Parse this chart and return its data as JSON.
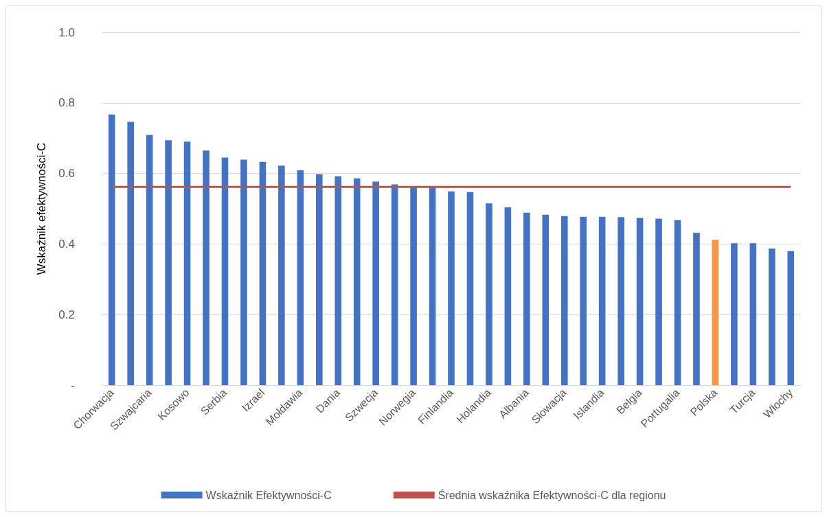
{
  "chart_data": {
    "type": "bar",
    "ylabel": "Wskaźnik efektywności-C",
    "categories": [
      "Chorwacja",
      null,
      "Szwajcaria",
      null,
      "Kosowo",
      null,
      "Serbia",
      null,
      "Izrael",
      null,
      "Mołdawia",
      null,
      "Dania",
      null,
      "Szwecja",
      null,
      "Norwegia",
      null,
      "Finlandia",
      null,
      "Holandia",
      null,
      "Albania",
      null,
      "Słowacja",
      null,
      "Islandia",
      null,
      "Belgia",
      null,
      "Portugalia",
      null,
      "Polska",
      null,
      "Turcja",
      null,
      "Włochy"
    ],
    "series": [
      {
        "name": "Wskaźnik Efektywności-C",
        "color": "#4472c4",
        "colors": [
          "#4472c4",
          "#4472c4",
          "#4472c4",
          "#4472c4",
          "#4472c4",
          "#4472c4",
          "#4472c4",
          "#4472c4",
          "#4472c4",
          "#4472c4",
          "#4472c4",
          "#4472c4",
          "#4472c4",
          "#4472c4",
          "#4472c4",
          "#4472c4",
          "#4472c4",
          "#4472c4",
          "#4472c4",
          "#4472c4",
          "#4472c4",
          "#4472c4",
          "#4472c4",
          "#4472c4",
          "#4472c4",
          "#4472c4",
          "#4472c4",
          "#4472c4",
          "#4472c4",
          "#4472c4",
          "#4472c4",
          "#4472c4",
          "#f79646",
          "#4472c4",
          "#4472c4",
          "#4472c4",
          "#4472c4"
        ],
        "values": [
          0.767,
          0.746,
          0.709,
          0.694,
          0.69,
          0.665,
          0.645,
          0.639,
          0.633,
          0.622,
          0.609,
          0.598,
          0.592,
          0.586,
          0.577,
          0.569,
          0.562,
          0.56,
          0.549,
          0.547,
          0.515,
          0.504,
          0.489,
          0.483,
          0.479,
          0.477,
          0.477,
          0.476,
          0.474,
          0.472,
          0.468,
          0.432,
          0.412,
          0.402,
          0.402,
          0.387,
          0.38
        ]
      },
      {
        "name": "Średnia wskaźnika Efektywności-C dla regionu",
        "type": "line",
        "color": "#c0504d",
        "values": [
          0.562,
          0.562,
          0.562,
          0.562,
          0.562,
          0.562,
          0.562,
          0.562,
          0.562,
          0.562,
          0.562,
          0.562,
          0.562,
          0.562,
          0.562,
          0.562,
          0.562,
          0.562,
          0.562,
          0.562,
          0.562,
          0.562,
          0.562,
          0.562,
          0.562,
          0.562,
          0.562,
          0.562,
          0.562,
          0.562,
          0.562,
          0.562,
          0.562,
          0.562,
          0.562,
          0.562,
          0.562
        ]
      }
    ],
    "ylim": [
      0,
      1
    ],
    "yticks": [
      {
        "value": 0,
        "label": "-"
      },
      0.2,
      0.4,
      0.6,
      0.8,
      {
        "value": 1,
        "label": "1.0"
      }
    ],
    "grid": "y",
    "legend": "bottom",
    "marker": "none"
  }
}
